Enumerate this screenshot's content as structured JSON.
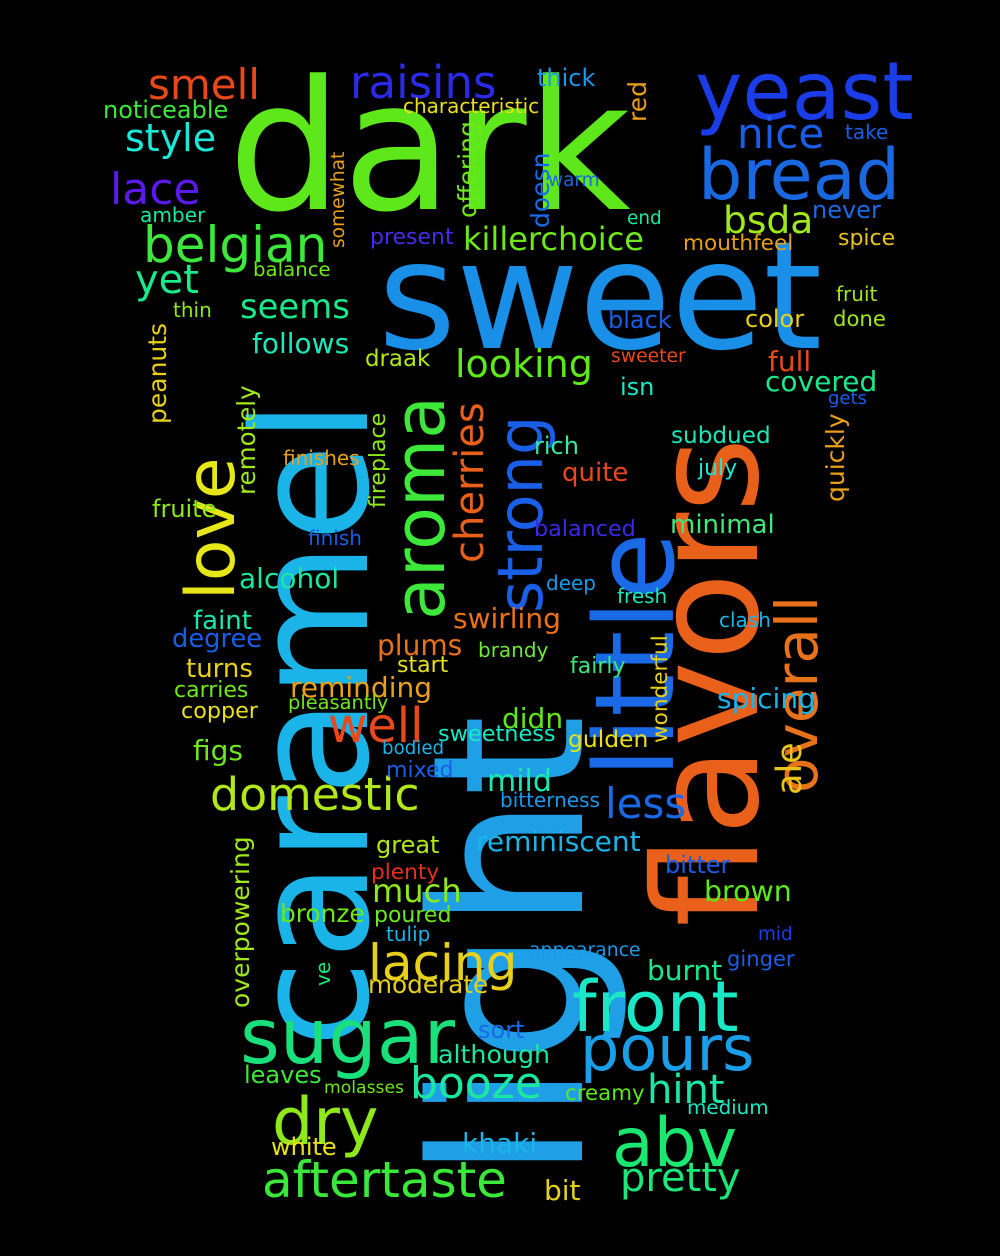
{
  "background": "#000000",
  "words": [
    {
      "text": "dark",
      "color": "#5ee81c"
    },
    {
      "text": "sweet",
      "color": "#198fe8"
    },
    {
      "text": "caramel",
      "color": "#1ab4e8"
    },
    {
      "text": "light",
      "color": "#1fa0e6"
    },
    {
      "text": "flavors",
      "color": "#e8601a"
    },
    {
      "text": "little",
      "color": "#1a6ae8"
    },
    {
      "text": "love",
      "color": "#e6e619"
    },
    {
      "text": "aroma",
      "color": "#3ee83a"
    },
    {
      "text": "yeast",
      "color": "#1a3de8"
    },
    {
      "text": "bread",
      "color": "#1a68e0"
    },
    {
      "text": "overall",
      "color": "#e8721a"
    },
    {
      "text": "strong",
      "color": "#1a5fe8"
    },
    {
      "text": "sugar",
      "color": "#1ae07c"
    },
    {
      "text": "front",
      "color": "#1ae8c4"
    },
    {
      "text": "pours",
      "color": "#1a9ee8"
    },
    {
      "text": "abv",
      "color": "#1ae870"
    },
    {
      "text": "dry",
      "color": "#8ee81a"
    },
    {
      "text": "domestic",
      "color": "#b2e81a"
    },
    {
      "text": "aftertaste",
      "color": "#3ae83a"
    },
    {
      "text": "lacing",
      "color": "#e8d01a"
    },
    {
      "text": "booze",
      "color": "#1ae8a0"
    },
    {
      "text": "belgian",
      "color": "#3de83a"
    },
    {
      "text": "well",
      "color": "#e8481a"
    },
    {
      "text": "smell",
      "color": "#e8481a"
    },
    {
      "text": "raisins",
      "color": "#2a2ae8"
    },
    {
      "text": "nice",
      "color": "#1a5ee8"
    },
    {
      "text": "style",
      "color": "#1ae8d8"
    },
    {
      "text": "lace",
      "color": "#5a1ae8"
    },
    {
      "text": "yet",
      "color": "#1ae88a"
    },
    {
      "text": "seems",
      "color": "#1ae88a"
    },
    {
      "text": "looking",
      "color": "#5ee81a"
    },
    {
      "text": "cherries",
      "color": "#e8601a"
    },
    {
      "text": "ale",
      "color": "#e8c41a"
    },
    {
      "text": "less",
      "color": "#1a6ae8"
    },
    {
      "text": "much",
      "color": "#8ee81a"
    },
    {
      "text": "hint",
      "color": "#1ae8a8"
    },
    {
      "text": "pretty",
      "color": "#1ae87a"
    },
    {
      "text": "bsda",
      "color": "#a0e81a"
    },
    {
      "text": "killerchoice",
      "color": "#6ee81a"
    },
    {
      "text": "noticeable",
      "color": "#3ee83a"
    },
    {
      "text": "thick",
      "color": "#1a9ae8"
    },
    {
      "text": "characteristic",
      "color": "#e8e01a"
    },
    {
      "text": "red",
      "color": "#e8a01a"
    },
    {
      "text": "take",
      "color": "#1a5ee8"
    },
    {
      "text": "offering",
      "color": "#6ee81a"
    },
    {
      "text": "doesn",
      "color": "#1a6ae8"
    },
    {
      "text": "warm",
      "color": "#1a68e0"
    },
    {
      "text": "somewhat",
      "color": "#e8a01a"
    },
    {
      "text": "amber",
      "color": "#1ae8a0"
    },
    {
      "text": "never",
      "color": "#1a6ae8"
    },
    {
      "text": "end",
      "color": "#1ae8a0"
    },
    {
      "text": "present",
      "color": "#4a2ae8"
    },
    {
      "text": "mouthfeel",
      "color": "#e8a01a"
    },
    {
      "text": "spice",
      "color": "#e8c41a"
    },
    {
      "text": "balance",
      "color": "#6ee81a"
    },
    {
      "text": "fruit",
      "color": "#a0e81a"
    },
    {
      "text": "thin",
      "color": "#8ee81a"
    },
    {
      "text": "follows",
      "color": "#1ae8b8"
    },
    {
      "text": "color",
      "color": "#e8d01a"
    },
    {
      "text": "done",
      "color": "#a0e81a"
    },
    {
      "text": "black",
      "color": "#1a5ee8"
    },
    {
      "text": "peanuts",
      "color": "#e8d01a"
    },
    {
      "text": "draak",
      "color": "#b2e81a"
    },
    {
      "text": "sweeter",
      "color": "#e8481a"
    },
    {
      "text": "full",
      "color": "#e8481a"
    },
    {
      "text": "isn",
      "color": "#1ae8c4"
    },
    {
      "text": "covered",
      "color": "#1ae88a"
    },
    {
      "text": "gets",
      "color": "#1a5ee8"
    },
    {
      "text": "remotely",
      "color": "#a0e81a"
    },
    {
      "text": "fireplace",
      "color": "#8ee81a"
    },
    {
      "text": "subdued",
      "color": "#1ae8b8"
    },
    {
      "text": "rich",
      "color": "#3ae8a0"
    },
    {
      "text": "quickly",
      "color": "#e8a01a"
    },
    {
      "text": "finishes",
      "color": "#e8a01a"
    },
    {
      "text": "quite",
      "color": "#e8481a"
    },
    {
      "text": "july",
      "color": "#1ae8d0"
    },
    {
      "text": "fruite",
      "color": "#8ee81a"
    },
    {
      "text": "minimal",
      "color": "#3ee87a"
    },
    {
      "text": "finish",
      "color": "#1a5ee8"
    },
    {
      "text": "balanced",
      "color": "#3a2ae8"
    },
    {
      "text": "alcohol",
      "color": "#1ae8a0"
    },
    {
      "text": "deep",
      "color": "#1a9ae8"
    },
    {
      "text": "fresh",
      "color": "#1ae8b8"
    },
    {
      "text": "faint",
      "color": "#1ae8b0"
    },
    {
      "text": "swirling",
      "color": "#e8721a"
    },
    {
      "text": "clash",
      "color": "#1ab4e8"
    },
    {
      "text": "degree",
      "color": "#1a5ee8"
    },
    {
      "text": "plums",
      "color": "#e8721a"
    },
    {
      "text": "brandy",
      "color": "#6ee83a"
    },
    {
      "text": "wonderful",
      "color": "#e8d01a"
    },
    {
      "text": "turns",
      "color": "#e8d01a"
    },
    {
      "text": "start",
      "color": "#e8e01a"
    },
    {
      "text": "fairly",
      "color": "#3ae87a"
    },
    {
      "text": "carries",
      "color": "#6ee81a"
    },
    {
      "text": "reminding",
      "color": "#e8a01a"
    },
    {
      "text": "spicing",
      "color": "#1ab4e8"
    },
    {
      "text": "copper",
      "color": "#e8e01a"
    },
    {
      "text": "pleasantly",
      "color": "#6ee81a"
    },
    {
      "text": "didn",
      "color": "#5ee81a"
    },
    {
      "text": "figs",
      "color": "#6ee81a"
    },
    {
      "text": "sweetness",
      "color": "#1ae8c4"
    },
    {
      "text": "gulden",
      "color": "#e8e01a"
    },
    {
      "text": "bodied",
      "color": "#1ab4e8"
    },
    {
      "text": "mixed",
      "color": "#1a5ee8"
    },
    {
      "text": "mild",
      "color": "#1ae8b0"
    },
    {
      "text": "bitterness",
      "color": "#1a9ae8"
    },
    {
      "text": "overpowering",
      "color": "#a0e81a"
    },
    {
      "text": "great",
      "color": "#b2e81a"
    },
    {
      "text": "reminiscent",
      "color": "#1ab4e8"
    },
    {
      "text": "plenty",
      "color": "#e8301a"
    },
    {
      "text": "bitter",
      "color": "#1a5ee8"
    },
    {
      "text": "brown",
      "color": "#5ee81a"
    },
    {
      "text": "bronze",
      "color": "#6ee81a"
    },
    {
      "text": "poured",
      "color": "#6ee81a"
    },
    {
      "text": "tulip",
      "color": "#1ab4e8"
    },
    {
      "text": "mid",
      "color": "#1a3ee8"
    },
    {
      "text": "appearance",
      "color": "#1a9ae8"
    },
    {
      "text": "ginger",
      "color": "#1a5ee8"
    },
    {
      "text": "burnt",
      "color": "#1ae88a"
    },
    {
      "text": "ve",
      "color": "#1ae87a"
    },
    {
      "text": "moderate",
      "color": "#e8d01a"
    },
    {
      "text": "sort",
      "color": "#1a6ae8"
    },
    {
      "text": "although",
      "color": "#1ae8a0"
    },
    {
      "text": "leaves",
      "color": "#3ee83a"
    },
    {
      "text": "molasses",
      "color": "#6ee81a"
    },
    {
      "text": "creamy",
      "color": "#5ee81a"
    },
    {
      "text": "medium",
      "color": "#1ae8c4"
    },
    {
      "text": "white",
      "color": "#e8e01a"
    },
    {
      "text": "khaki",
      "color": "#1ab4e8"
    },
    {
      "text": "bit",
      "color": "#e8d01a"
    }
  ]
}
